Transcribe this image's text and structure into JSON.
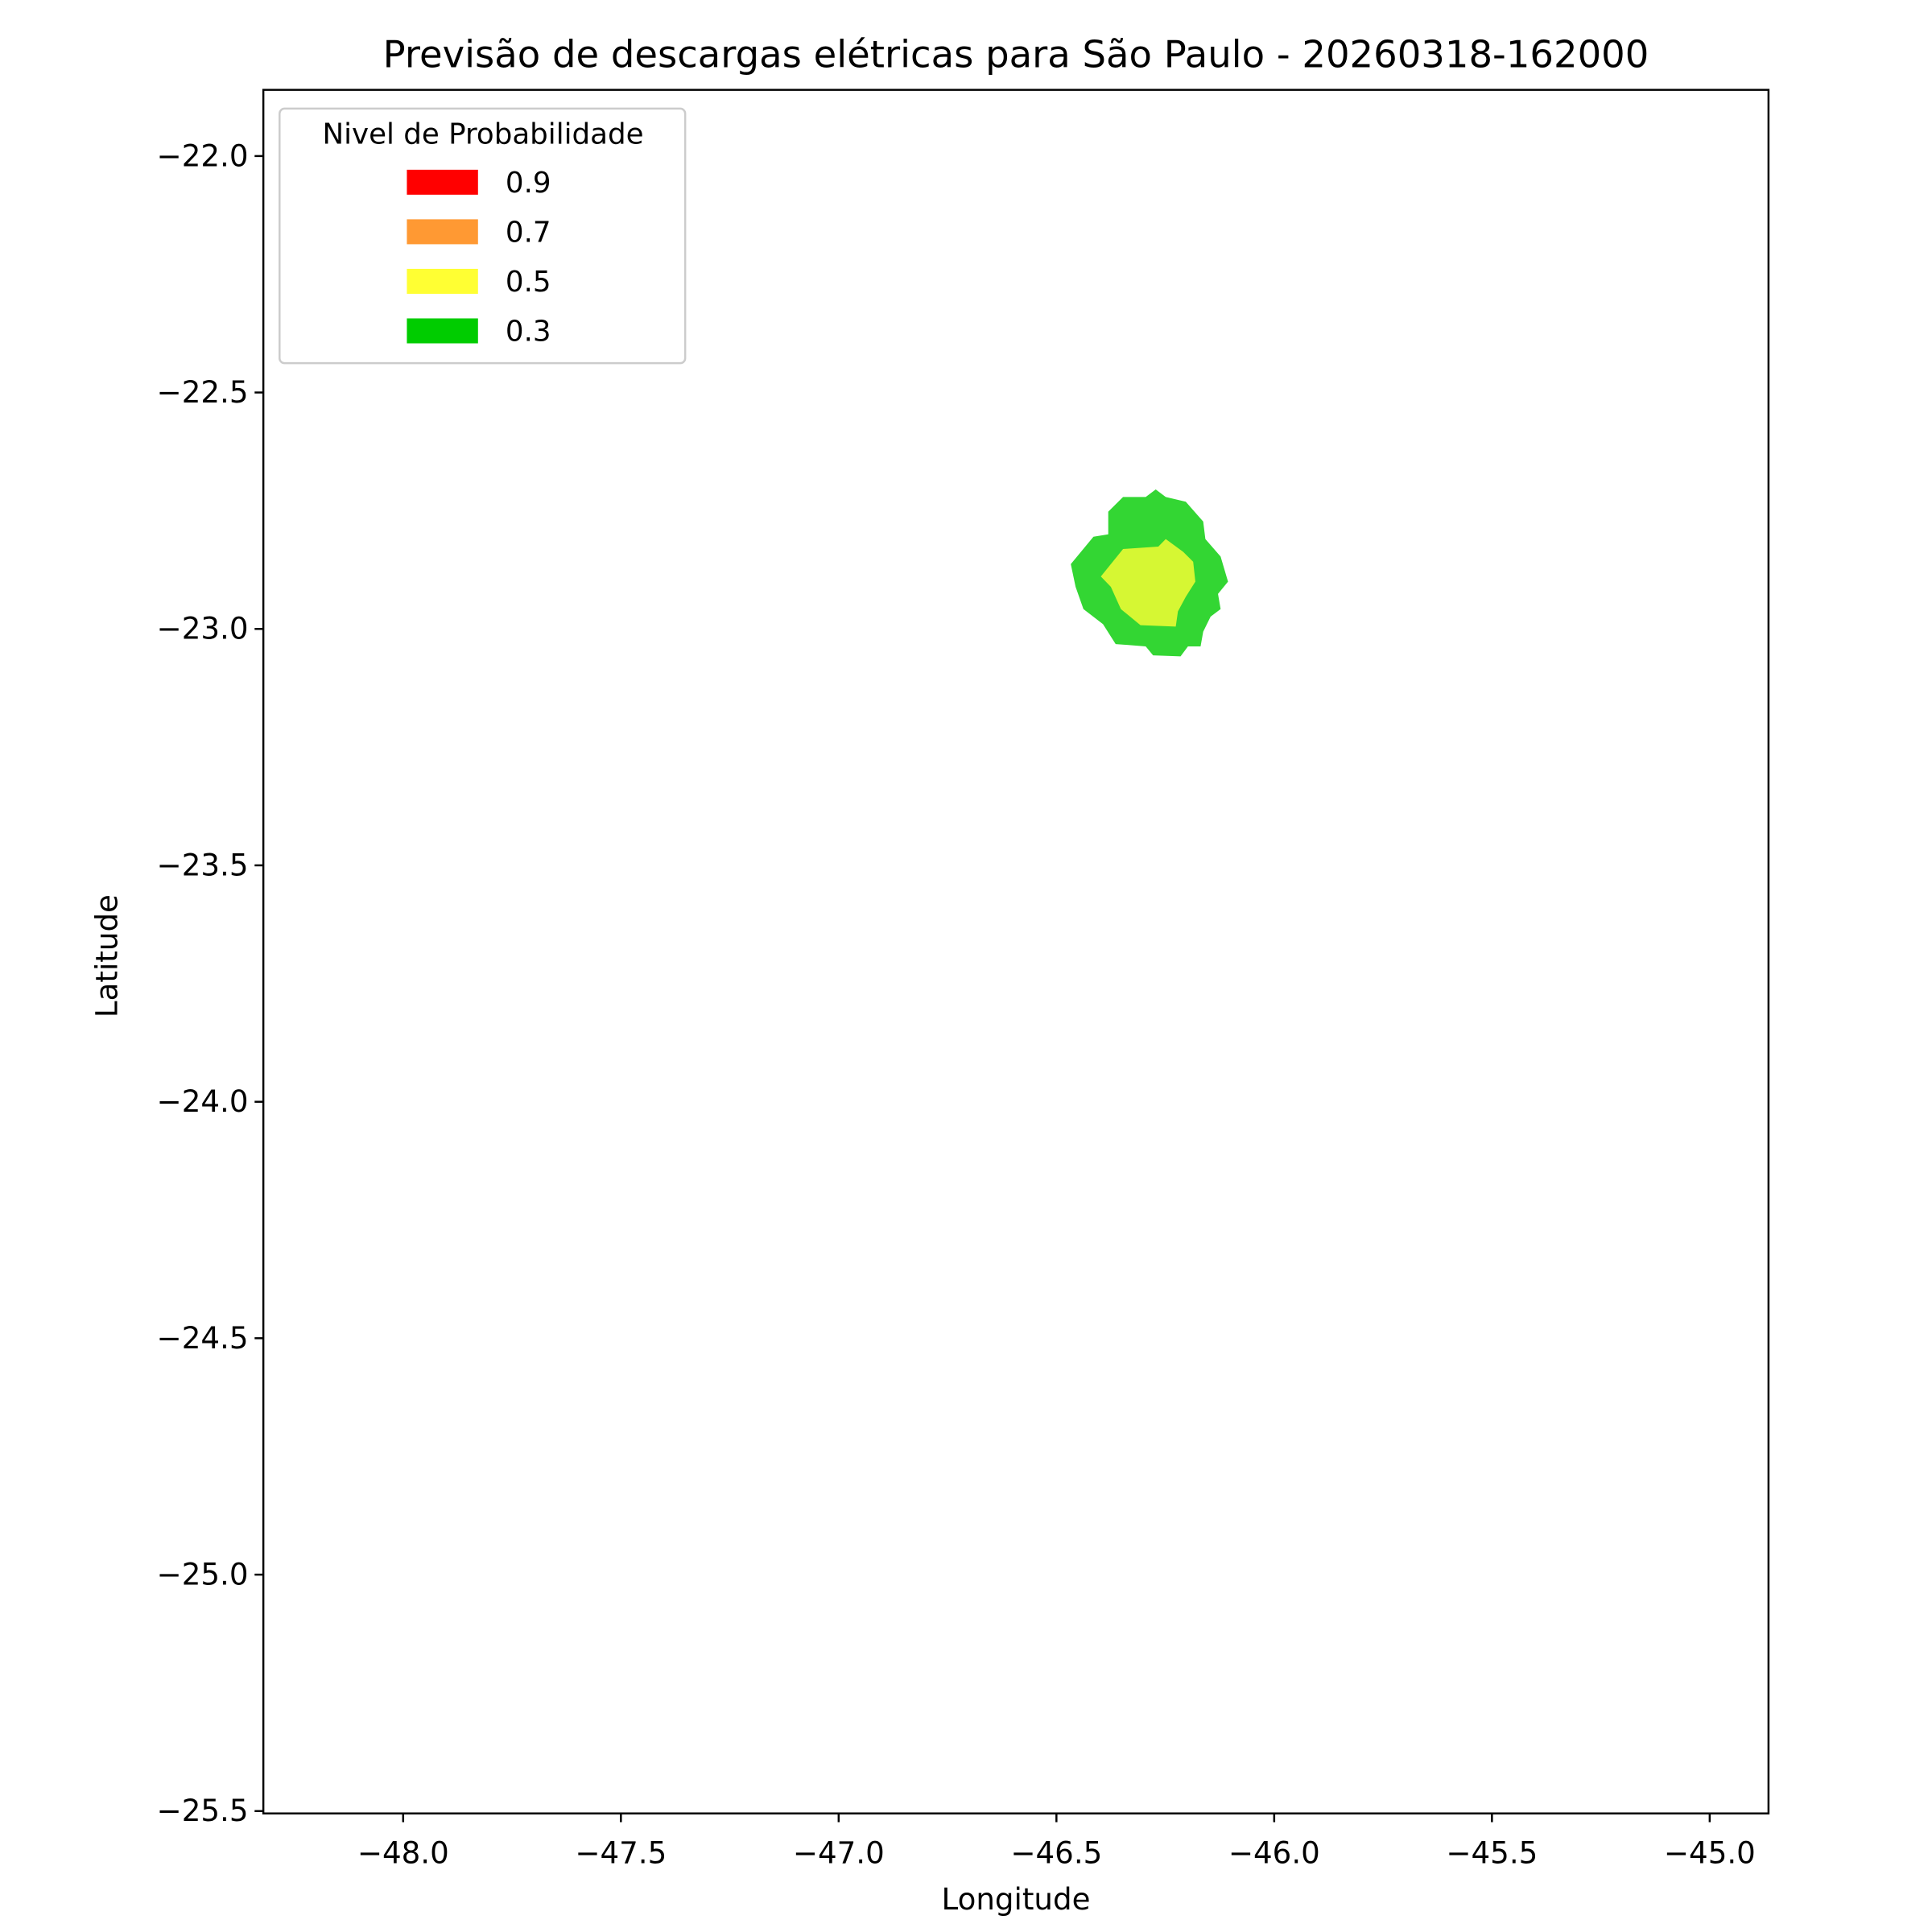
{
  "chart_data": {
    "type": "contour",
    "title": "Previsão de descargas elétricas para São Paulo - 20260318-162000",
    "x_label": "Longitude",
    "y_label": "Latitude",
    "xlim": [
      -48.321,
      -44.865
    ],
    "ylim": [
      -25.505,
      -21.86
    ],
    "xticks": [
      {
        "value": -48.0,
        "label": "−48.0"
      },
      {
        "value": -47.5,
        "label": "−47.5"
      },
      {
        "value": -47.0,
        "label": "−47.0"
      },
      {
        "value": -46.5,
        "label": "−46.5"
      },
      {
        "value": -46.0,
        "label": "−46.0"
      },
      {
        "value": -45.5,
        "label": "−45.5"
      },
      {
        "value": -45.0,
        "label": "−45.0"
      }
    ],
    "yticks": [
      {
        "value": -22.0,
        "label": "−22.0"
      },
      {
        "value": -22.5,
        "label": "−22.5"
      },
      {
        "value": -23.0,
        "label": "−23.0"
      },
      {
        "value": -23.5,
        "label": "−23.5"
      },
      {
        "value": -24.0,
        "label": "−24.0"
      },
      {
        "value": -24.5,
        "label": "−24.5"
      },
      {
        "value": -25.0,
        "label": "−25.0"
      },
      {
        "value": -25.5,
        "label": "−25.5"
      }
    ],
    "legend_title": "Nivel de Probabilidade",
    "legend_position": "upper left",
    "levels": [
      {
        "label": "0.9",
        "value": 0.9,
        "color": "#ff0000"
      },
      {
        "label": "0.7",
        "value": 0.7,
        "color": "#ff9933"
      },
      {
        "label": "0.5",
        "value": 0.5,
        "color": "#ffff33"
      },
      {
        "label": "0.3",
        "value": 0.3,
        "color": "#00cc00"
      }
    ],
    "fill_opacity": 0.8,
    "regions": [
      {
        "level": 0.3,
        "lon": [
          -46.467,
          -46.415,
          -46.381,
          -46.381,
          -46.347,
          -46.295,
          -46.272,
          -46.249,
          -46.203,
          -46.163,
          -46.158,
          -46.123,
          -46.106,
          -46.129,
          -46.123,
          -46.146,
          -46.163,
          -46.169,
          -46.198,
          -46.215,
          -46.278,
          -46.295,
          -46.364,
          -46.393,
          -46.438,
          -46.456
        ],
        "lat": [
          -22.863,
          -22.805,
          -22.8,
          -22.752,
          -22.721,
          -22.721,
          -22.705,
          -22.721,
          -22.731,
          -22.773,
          -22.81,
          -22.847,
          -22.9,
          -22.926,
          -22.958,
          -22.974,
          -23.006,
          -23.037,
          -23.037,
          -23.058,
          -23.056,
          -23.037,
          -23.032,
          -22.99,
          -22.958,
          -22.911
        ]
      },
      {
        "level": 0.5,
        "lon": [
          -46.398,
          -46.347,
          -46.266,
          -46.249,
          -46.209,
          -46.186,
          -46.181,
          -46.203,
          -46.221,
          -46.226,
          -46.307,
          -46.352,
          -46.375
        ],
        "lat": [
          -22.889,
          -22.831,
          -22.826,
          -22.81,
          -22.837,
          -22.858,
          -22.9,
          -22.932,
          -22.963,
          -22.995,
          -22.992,
          -22.958,
          -22.911
        ]
      }
    ]
  }
}
